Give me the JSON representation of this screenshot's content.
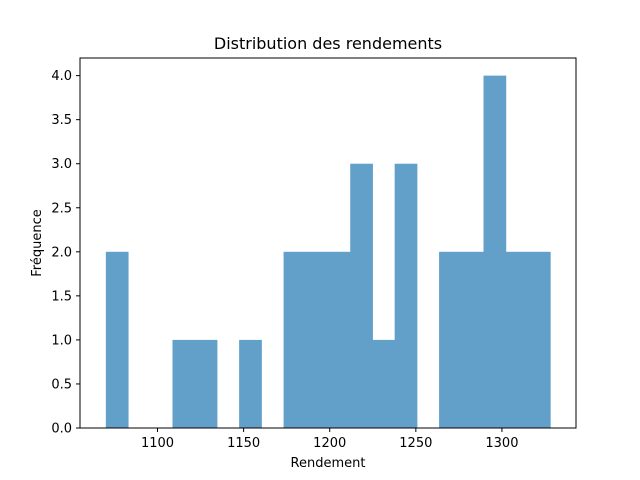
{
  "chart_data": {
    "type": "bar",
    "title": "Distribution des rendements",
    "xlabel": "Rendement",
    "ylabel": "Fréquence",
    "bar_color": "#62a0ca",
    "bin_start": 1070,
    "bin_width": 12.9,
    "bins": [
      {
        "x0": 1070.0,
        "x1": 1082.9,
        "count": 2
      },
      {
        "x0": 1082.9,
        "x1": 1095.8,
        "count": 0
      },
      {
        "x0": 1095.8,
        "x1": 1108.7,
        "count": 0
      },
      {
        "x0": 1108.7,
        "x1": 1121.6,
        "count": 1
      },
      {
        "x0": 1121.6,
        "x1": 1134.5,
        "count": 1
      },
      {
        "x0": 1134.5,
        "x1": 1147.4,
        "count": 0
      },
      {
        "x0": 1147.4,
        "x1": 1160.3,
        "count": 1
      },
      {
        "x0": 1160.3,
        "x1": 1173.2,
        "count": 0
      },
      {
        "x0": 1173.2,
        "x1": 1186.1,
        "count": 2
      },
      {
        "x0": 1186.1,
        "x1": 1199.0,
        "count": 2
      },
      {
        "x0": 1199.0,
        "x1": 1211.9,
        "count": 2
      },
      {
        "x0": 1211.9,
        "x1": 1224.8,
        "count": 3
      },
      {
        "x0": 1224.8,
        "x1": 1237.7,
        "count": 1
      },
      {
        "x0": 1237.7,
        "x1": 1250.6,
        "count": 3
      },
      {
        "x0": 1250.6,
        "x1": 1263.5,
        "count": 0
      },
      {
        "x0": 1263.5,
        "x1": 1276.4,
        "count": 2
      },
      {
        "x0": 1276.4,
        "x1": 1289.3,
        "count": 2
      },
      {
        "x0": 1289.3,
        "x1": 1302.2,
        "count": 4
      },
      {
        "x0": 1302.2,
        "x1": 1315.1,
        "count": 2
      },
      {
        "x0": 1315.1,
        "x1": 1328.0,
        "count": 2
      }
    ],
    "xlim": [
      1055,
      1343
    ],
    "ylim": [
      0,
      4.2
    ],
    "xticks": [
      1100,
      1150,
      1200,
      1250,
      1300
    ],
    "xtick_labels": [
      "1100",
      "1150",
      "1200",
      "1250",
      "1300"
    ],
    "yticks": [
      0,
      0.5,
      1,
      1.5,
      2,
      2.5,
      3,
      3.5,
      4
    ],
    "ytick_labels": [
      "0.0",
      "0.5",
      "1.0",
      "1.5",
      "2.0",
      "2.5",
      "3.0",
      "3.5",
      "4.0"
    ],
    "grid": false,
    "legend": "none"
  }
}
